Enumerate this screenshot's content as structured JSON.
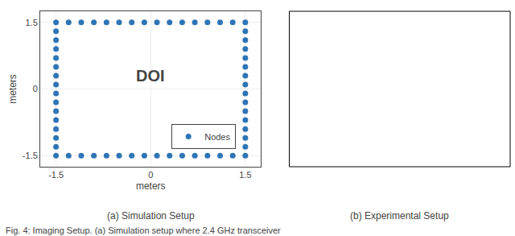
{
  "chart_data": {
    "type": "scatter",
    "xlabel": "meters",
    "ylabel": "meters",
    "x": [
      -1.5,
      -1.3,
      -1.1,
      -0.9,
      -0.7,
      -0.5,
      -0.3,
      -0.1,
      0.1,
      0.3,
      0.5,
      0.7,
      0.9,
      1.1,
      1.3,
      1.5,
      -1.5,
      -1.3,
      -1.1,
      -0.9,
      -0.7,
      -0.5,
      -0.3,
      -0.1,
      0.1,
      0.3,
      0.5,
      0.7,
      0.9,
      1.1,
      1.3,
      1.5,
      -1.5,
      -1.5,
      -1.5,
      -1.5,
      -1.5,
      -1.5,
      -1.5,
      -1.5,
      -1.5,
      -1.5,
      -1.5,
      -1.5,
      -1.5,
      -1.5,
      1.5,
      1.5,
      1.5,
      1.5,
      1.5,
      1.5,
      1.5,
      1.5,
      1.5,
      1.5,
      1.5,
      1.5,
      1.5,
      1.5
    ],
    "series": [
      {
        "name": "Nodes",
        "color": "#2e75b6",
        "marker": "circle",
        "values": [
          1.5,
          1.5,
          1.5,
          1.5,
          1.5,
          1.5,
          1.5,
          1.5,
          1.5,
          1.5,
          1.5,
          1.5,
          1.5,
          1.5,
          1.5,
          1.5,
          -1.5,
          -1.5,
          -1.5,
          -1.5,
          -1.5,
          -1.5,
          -1.5,
          -1.5,
          -1.5,
          -1.5,
          -1.5,
          -1.5,
          -1.5,
          -1.5,
          -1.5,
          -1.5,
          -1.3,
          -1.1,
          -0.9,
          -0.7,
          -0.5,
          -0.3,
          -0.1,
          0.1,
          0.3,
          0.5,
          0.7,
          0.9,
          1.1,
          1.3,
          -1.3,
          -1.1,
          -0.9,
          -0.7,
          -0.5,
          -0.3,
          -0.1,
          0.1,
          0.3,
          0.5,
          0.7,
          0.9,
          1.1,
          1.3
        ]
      }
    ],
    "xlim": [
      -1.75,
      1.75
    ],
    "ylim": [
      -1.75,
      1.75
    ],
    "xticks": [
      -1.5,
      0,
      1.5
    ],
    "yticks": [
      -1.5,
      0,
      1.5
    ],
    "grid": true,
    "legend": "lower right",
    "annotations": [
      {
        "text": "DOI",
        "x": 0.0,
        "y": 0.3
      },
      {
        "text": "(a) Simulation Setup"
      },
      {
        "text": "(b) Experimental Setup"
      },
      {
        "text": "Fig. 4: Imaging Setup. (a) Simulation setup where 2.4 GHz transceiver"
      }
    ]
  }
}
